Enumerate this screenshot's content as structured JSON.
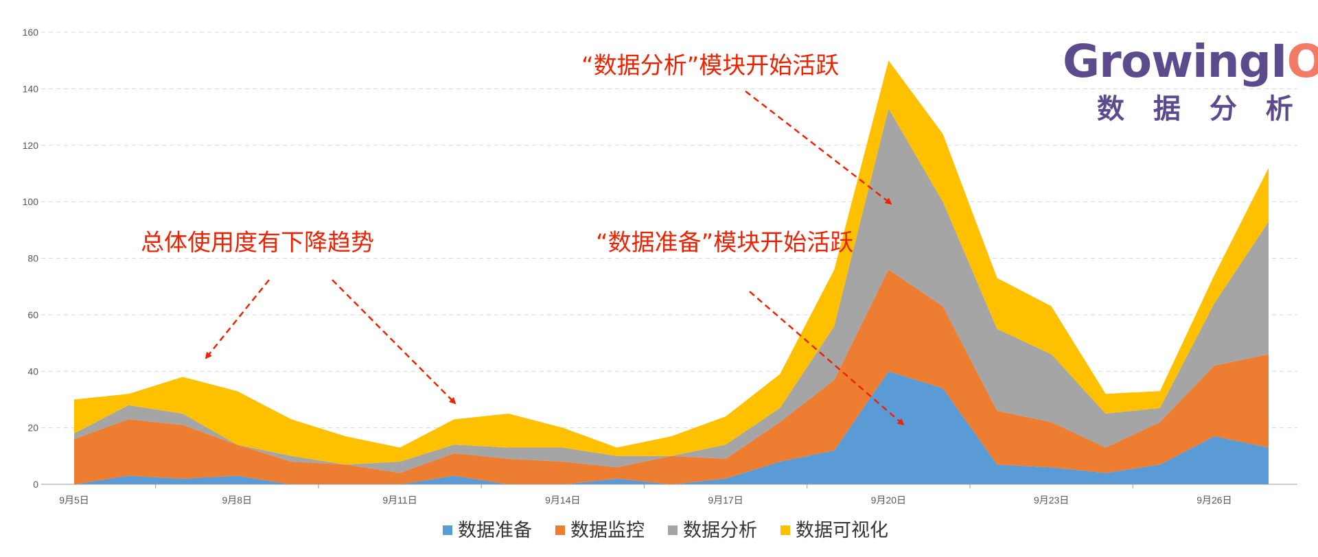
{
  "chart_data": {
    "type": "area",
    "stacked": true,
    "x": [
      "9月5日",
      "9月6日",
      "9月7日",
      "9月8日",
      "9月9日",
      "9月10日",
      "9月11日",
      "9月12日",
      "9月13日",
      "9月14日",
      "9月15日",
      "9月16日",
      "9月17日",
      "9月18日",
      "9月19日",
      "9月20日",
      "9月21日",
      "9月22日",
      "9月23日",
      "9月24日",
      "9月25日",
      "9月26日",
      "9月27日"
    ],
    "x_tick_labels": [
      "9月5日",
      "9月8日",
      "9月11日",
      "9月14日",
      "9月17日",
      "9月20日",
      "9月23日",
      "9月26日"
    ],
    "series": [
      {
        "name": "数据准备",
        "color": "#5b9bd5",
        "values": [
          0,
          3,
          2,
          3,
          0,
          0,
          0,
          3,
          0,
          0,
          2,
          0,
          2,
          8,
          12,
          40,
          34,
          7,
          6,
          4,
          7,
          17,
          13
        ]
      },
      {
        "name": "数据监控",
        "color": "#ed7d31",
        "values": [
          16,
          20,
          19,
          11,
          8,
          7,
          4,
          8,
          9,
          8,
          4,
          10,
          7,
          14,
          25,
          36,
          29,
          19,
          16,
          9,
          15,
          25,
          33
        ]
      },
      {
        "name": "数据分析",
        "color": "#a5a5a5",
        "values": [
          2,
          5,
          4,
          0,
          2,
          0,
          4,
          3,
          4,
          5,
          4,
          0,
          5,
          5,
          19,
          57,
          37,
          29,
          24,
          12,
          5,
          22,
          47
        ]
      },
      {
        "name": "数据可视化",
        "color": "#ffc000",
        "values": [
          12,
          4,
          13,
          19,
          13,
          10,
          5,
          9,
          12,
          7,
          3,
          7,
          10,
          12,
          20,
          17,
          24,
          18,
          17,
          7,
          6,
          10,
          19
        ]
      }
    ],
    "ylim": [
      0,
      160
    ],
    "y_ticks": [
      0,
      20,
      40,
      60,
      80,
      100,
      120,
      140,
      160
    ],
    "grid": true,
    "legend_position": "bottom",
    "annotations": [
      {
        "text": "总体使用度有下降趋势"
      },
      {
        "text": "“数据准备”模块开始活跃"
      },
      {
        "text": "“数据分析”模块开始活跃"
      }
    ]
  },
  "logo": {
    "brand": "GrowingIO",
    "sub": "数 据 分 析"
  },
  "colors": {
    "annotation": "#ee2200",
    "grid": "#d8d8d8",
    "axis": "#999999"
  }
}
